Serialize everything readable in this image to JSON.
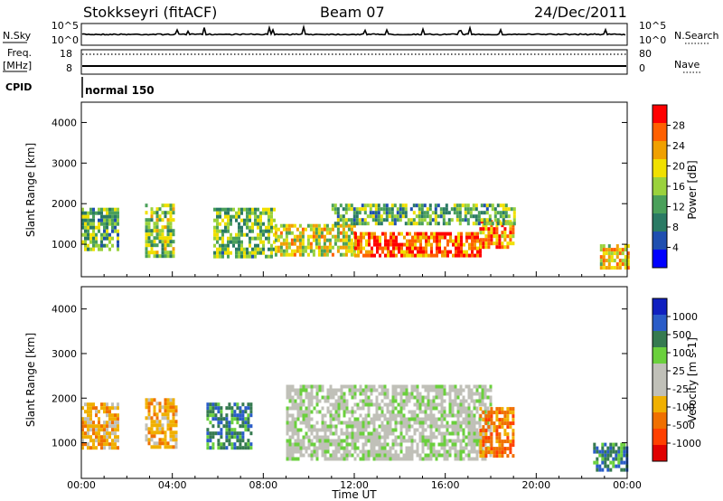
{
  "header": {
    "station": "Stokkseyri (fitACF)",
    "beam": "Beam 07",
    "date": "24/Dec/2011"
  },
  "strip": {
    "nsky_label": "N.Sky",
    "nsky_ticks": [
      "10^5",
      "10^0"
    ],
    "nsearch_label": "N.Search",
    "nsearch_ticks": [
      "10^5",
      "10^0"
    ],
    "freq_label": "Freq.",
    "freq_unit": "[MHz]",
    "freq_ticks": [
      "18",
      "8"
    ],
    "nave_label": "Nave",
    "nave_ticks": [
      "80",
      "0"
    ],
    "cpid_label": "CPID",
    "cpid_value": "normal 150"
  },
  "colors": {
    "power": [
      "#0000ff",
      "#1f4fb0",
      "#2a7a64",
      "#4aa05a",
      "#9ad23c",
      "#f0e000",
      "#f0a000",
      "#ff6000",
      "#ff0000"
    ],
    "velocity": [
      "#1020c0",
      "#2a5cc8",
      "#357a50",
      "#6ad03c",
      "#c0c0b8",
      "#c0c0b8",
      "#f0b000",
      "#f07000",
      "#ff4000",
      "#e00000"
    ]
  },
  "chart_data": [
    {
      "type": "heatmap",
      "parameter": "Power",
      "ylabel": "Slant Range [km]",
      "ylim": [
        200,
        4500
      ],
      "yticks": [
        "1000",
        "2000",
        "3000",
        "4000"
      ],
      "xlim": [
        "00:00",
        "24:00"
      ],
      "colorbar": {
        "label": "Power [dB]",
        "ticks": [
          "4",
          "8",
          "12",
          "16",
          "20",
          "24",
          "28"
        ],
        "range": [
          0,
          30
        ]
      },
      "regions": [
        {
          "t": [
            0.0,
            1.6
          ],
          "r": [
            900,
            1900
          ],
          "v": 12
        },
        {
          "t": [
            2.8,
            4.0
          ],
          "r": [
            700,
            2000
          ],
          "v": 14
        },
        {
          "t": [
            5.8,
            8.5
          ],
          "r": [
            700,
            1900
          ],
          "v": 13
        },
        {
          "t": [
            8.5,
            12.0
          ],
          "r": [
            700,
            1500
          ],
          "v": 18
        },
        {
          "t": [
            12.0,
            17.5
          ],
          "r": [
            700,
            1300
          ],
          "v": 26
        },
        {
          "t": [
            17.5,
            19.0
          ],
          "r": [
            900,
            1600
          ],
          "v": 24
        },
        {
          "t": [
            11.0,
            19.0
          ],
          "r": [
            1500,
            2000
          ],
          "v": 12
        },
        {
          "t": [
            22.8,
            24.0
          ],
          "r": [
            400,
            1000
          ],
          "v": 20
        }
      ]
    },
    {
      "type": "heatmap",
      "parameter": "Velocity",
      "ylabel": "Slant Range [km]",
      "ylim": [
        200,
        4500
      ],
      "yticks": [
        "1000",
        "2000",
        "3000",
        "4000"
      ],
      "xlim": [
        "00:00",
        "24:00"
      ],
      "xticks": [
        "00:00",
        "04:00",
        "08:00",
        "12:00",
        "16:00",
        "20:00",
        "00:00"
      ],
      "xlabel": "Time UT",
      "colorbar": {
        "label": "Velocity [m s-1]",
        "ticks": [
          "1000",
          "500",
          "100",
          "25",
          "-25",
          "-100",
          "-500",
          "-1000"
        ]
      },
      "regions": [
        {
          "t": [
            0.0,
            1.6
          ],
          "r": [
            900,
            1900
          ],
          "v": -100
        },
        {
          "t": [
            2.8,
            4.2
          ],
          "r": [
            900,
            2000
          ],
          "v": -100
        },
        {
          "t": [
            5.5,
            7.5
          ],
          "r": [
            900,
            1900
          ],
          "v": 100
        },
        {
          "t": [
            9.0,
            18.0
          ],
          "r": [
            600,
            2300
          ],
          "v": 0
        },
        {
          "t": [
            17.5,
            19.0
          ],
          "r": [
            700,
            1800
          ],
          "v": -200
        },
        {
          "t": [
            22.5,
            24.0
          ],
          "r": [
            400,
            1000
          ],
          "v": 100
        }
      ]
    }
  ]
}
